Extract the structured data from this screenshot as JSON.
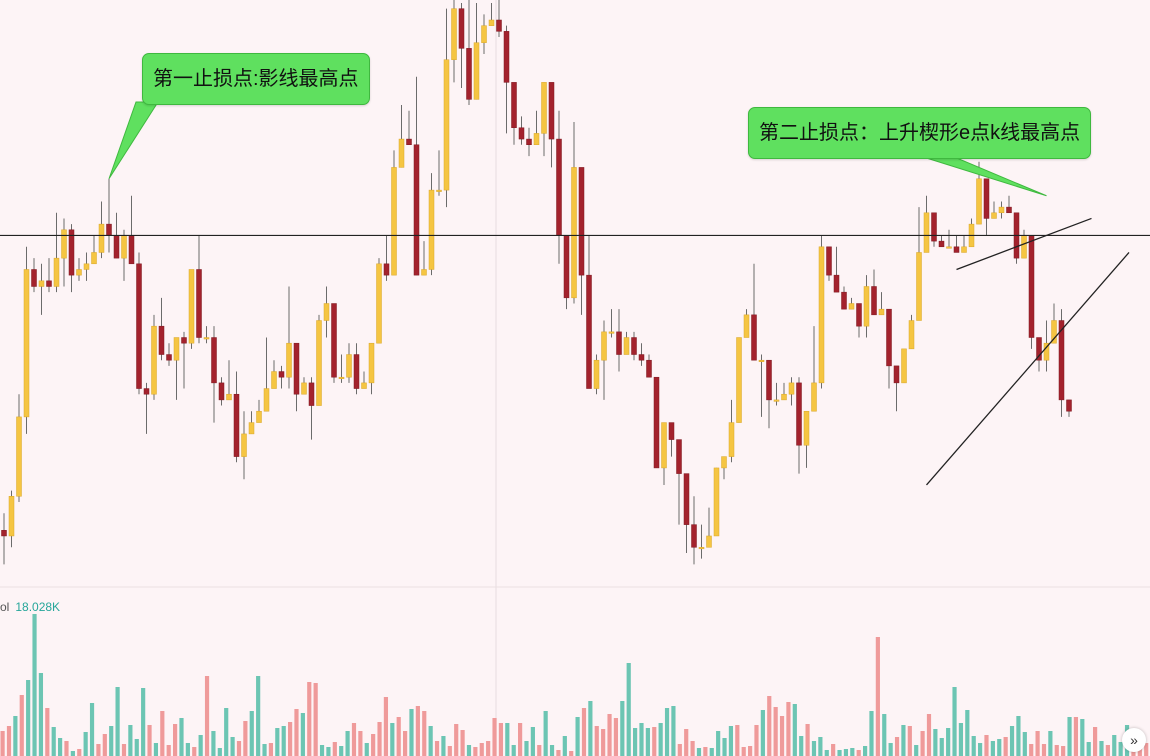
{
  "colors": {
    "background": "#fdf4f6",
    "up_candle": "#f5c542",
    "down_candle": "#a3222d",
    "wick": "#6b6b6b",
    "volume_green": "#6cc5b3",
    "volume_red": "#ef9a9a",
    "callout_bg": "#5fe05f",
    "line": "#222222"
  },
  "volume_label": {
    "name": "ol",
    "value": "18.028K"
  },
  "annotations": {
    "first_stop": "第一止损点:影线最高点",
    "second_stop": "第二止损点：上升楔形e点k线最高点"
  },
  "icons": {
    "scroll_right": "double-chevron-right-icon"
  },
  "chart_data": {
    "type": "candlestick",
    "title": "",
    "xlabel": "",
    "ylabel": "",
    "ylim": [
      0,
      100
    ],
    "grid": false,
    "horizontal_level": 62,
    "wedge": {
      "upper": [
        [
          127,
          56
        ],
        [
          145,
          65
        ]
      ],
      "lower": [
        [
          123,
          18
        ],
        [
          150,
          59
        ]
      ]
    },
    "candles": [
      [
        10,
        9,
        13,
        4
      ],
      [
        9,
        16,
        17,
        7
      ],
      [
        16,
        30,
        34,
        15
      ],
      [
        30,
        56,
        60,
        27
      ],
      [
        56,
        53,
        58,
        52
      ],
      [
        53,
        54,
        57,
        48
      ],
      [
        54,
        53,
        58,
        52
      ],
      [
        53,
        58,
        66,
        52
      ],
      [
        58,
        63,
        65,
        53
      ],
      [
        63,
        55,
        64,
        52
      ],
      [
        55,
        56,
        58,
        54
      ],
      [
        56,
        57,
        59,
        54
      ],
      [
        57,
        59,
        62,
        57
      ],
      [
        59,
        64,
        68,
        58
      ],
      [
        64,
        62,
        72,
        59
      ],
      [
        62,
        58,
        66,
        58
      ],
      [
        58,
        62,
        63,
        54
      ],
      [
        62,
        57,
        69,
        57
      ],
      [
        57,
        35,
        59,
        34
      ],
      [
        35,
        34,
        36,
        27
      ],
      [
        34,
        46,
        48,
        33
      ],
      [
        46,
        41,
        51,
        40
      ],
      [
        41,
        40,
        43,
        39
      ],
      [
        40,
        44,
        44,
        33
      ],
      [
        44,
        43,
        45,
        35
      ],
      [
        43,
        56,
        56,
        42
      ],
      [
        56,
        44,
        62,
        43
      ],
      [
        44,
        44,
        46,
        43
      ],
      [
        44,
        36,
        46,
        29
      ],
      [
        36,
        33,
        37,
        32
      ],
      [
        33,
        34,
        40,
        34
      ],
      [
        34,
        23,
        38,
        22
      ],
      [
        23,
        27,
        31,
        19
      ],
      [
        27,
        29,
        31,
        27
      ],
      [
        29,
        31,
        33,
        30
      ],
      [
        31,
        35,
        44,
        31
      ],
      [
        35,
        38,
        40,
        35
      ],
      [
        38,
        37,
        39,
        35
      ],
      [
        37,
        43,
        53,
        35
      ],
      [
        43,
        34,
        43,
        31
      ],
      [
        34,
        36,
        37,
        36
      ],
      [
        36,
        32,
        37,
        26
      ],
      [
        32,
        47,
        48,
        32
      ],
      [
        47,
        50,
        53,
        44
      ],
      [
        50,
        37,
        50,
        36
      ],
      [
        37,
        37,
        41,
        36
      ],
      [
        37,
        41,
        43,
        36
      ],
      [
        41,
        35,
        43,
        34
      ],
      [
        35,
        36,
        38,
        35
      ],
      [
        36,
        43,
        43,
        34
      ],
      [
        43,
        57,
        58,
        43
      ],
      [
        57,
        55,
        62,
        54
      ],
      [
        55,
        74,
        77,
        56
      ],
      [
        74,
        79,
        85,
        74
      ],
      [
        79,
        78,
        84,
        78
      ],
      [
        78,
        55,
        90,
        55
      ],
      [
        55,
        56,
        61,
        55
      ],
      [
        56,
        70,
        73,
        55
      ],
      [
        70,
        70,
        77,
        69
      ],
      [
        70,
        93,
        102,
        67
      ],
      [
        93,
        102,
        117,
        89
      ],
      [
        102,
        95,
        103,
        88
      ],
      [
        95,
        86,
        105,
        85
      ],
      [
        86,
        96,
        103,
        86
      ],
      [
        96,
        99,
        101,
        94
      ],
      [
        99,
        100,
        103,
        99
      ],
      [
        100,
        98,
        105,
        97
      ],
      [
        98,
        89,
        99,
        80
      ],
      [
        89,
        81,
        83,
        78
      ],
      [
        81,
        79,
        83,
        78
      ],
      [
        79,
        78,
        81,
        76
      ],
      [
        78,
        80,
        84,
        78
      ],
      [
        80,
        89,
        89,
        76
      ],
      [
        89,
        79,
        82,
        74
      ],
      [
        79,
        62,
        84,
        57
      ],
      [
        62,
        51,
        60,
        49
      ],
      [
        51,
        74,
        82,
        50
      ],
      [
        74,
        55,
        56,
        48
      ],
      [
        55,
        35,
        62,
        35
      ],
      [
        35,
        40,
        41,
        34
      ],
      [
        40,
        45,
        47,
        33
      ],
      [
        45,
        45,
        49,
        44
      ],
      [
        45,
        41,
        49,
        38
      ],
      [
        41,
        44,
        45,
        41
      ],
      [
        44,
        41,
        45,
        40
      ],
      [
        41,
        40,
        43,
        39
      ],
      [
        40,
        37,
        41,
        37
      ],
      [
        37,
        21,
        36,
        21
      ],
      [
        21,
        29,
        29,
        18
      ],
      [
        29,
        26,
        28,
        23
      ],
      [
        26,
        20,
        20,
        11
      ],
      [
        20,
        11,
        16,
        6
      ],
      [
        11,
        7,
        16,
        4
      ],
      [
        7,
        7,
        11,
        5
      ],
      [
        7,
        9,
        14,
        9
      ],
      [
        9,
        21,
        21,
        9
      ],
      [
        21,
        23,
        23,
        19
      ],
      [
        23,
        29,
        33,
        22
      ],
      [
        29,
        44,
        44,
        29
      ],
      [
        44,
        48,
        49,
        44
      ],
      [
        48,
        40,
        57,
        40
      ],
      [
        40,
        40,
        41,
        30
      ],
      [
        40,
        33,
        35,
        28
      ],
      [
        33,
        33,
        36,
        32
      ],
      [
        33,
        34,
        36,
        33
      ],
      [
        34,
        36,
        37,
        32
      ],
      [
        36,
        25,
        37,
        20
      ],
      [
        25,
        31,
        31,
        21
      ],
      [
        31,
        36,
        46,
        31
      ],
      [
        36,
        60,
        62,
        35
      ],
      [
        60,
        55,
        60,
        54
      ],
      [
        55,
        52,
        60,
        52
      ],
      [
        52,
        49,
        53,
        49
      ],
      [
        49,
        50,
        51,
        49
      ],
      [
        50,
        46,
        50,
        44
      ],
      [
        46,
        53,
        55,
        44
      ],
      [
        53,
        48,
        56,
        48
      ],
      [
        48,
        49,
        52,
        48
      ],
      [
        49,
        39,
        44,
        35
      ],
      [
        39,
        36,
        38,
        31
      ],
      [
        36,
        42,
        41,
        36
      ],
      [
        42,
        47,
        48,
        42
      ],
      [
        47,
        59,
        67,
        47
      ],
      [
        59,
        66,
        69,
        59
      ],
      [
        66,
        61,
        64,
        60
      ],
      [
        61,
        60,
        62,
        60
      ],
      [
        60,
        60,
        63,
        60
      ],
      [
        60,
        59,
        62,
        59
      ],
      [
        59,
        60,
        62,
        59
      ],
      [
        60,
        64,
        65,
        60
      ],
      [
        64,
        72,
        75,
        64
      ],
      [
        72,
        65,
        69,
        62
      ],
      [
        65,
        66,
        68,
        65
      ],
      [
        66,
        67,
        68,
        65
      ],
      [
        67,
        66,
        69,
        66
      ],
      [
        66,
        58,
        63,
        57
      ],
      [
        58,
        62,
        63,
        58
      ],
      [
        62,
        44,
        58,
        42
      ],
      [
        44,
        40,
        41,
        38
      ],
      [
        40,
        43,
        47,
        38
      ],
      [
        43,
        47,
        50,
        43
      ],
      [
        47,
        33,
        49,
        30
      ],
      [
        33,
        31,
        33,
        30
      ]
    ],
    "volume": [
      [
        25,
        "r"
      ],
      [
        30,
        "r"
      ],
      [
        40,
        "g"
      ],
      [
        61,
        "r"
      ],
      [
        76,
        "g"
      ],
      [
        142,
        "g"
      ],
      [
        83,
        "g"
      ],
      [
        48,
        "r"
      ],
      [
        29,
        "g"
      ],
      [
        18,
        "g"
      ],
      [
        15,
        "r"
      ],
      [
        5,
        "g"
      ],
      [
        7,
        "r"
      ],
      [
        24,
        "g"
      ],
      [
        53,
        "g"
      ],
      [
        12,
        "r"
      ],
      [
        22,
        "r"
      ],
      [
        30,
        "g"
      ],
      [
        69,
        "g"
      ],
      [
        12,
        "r"
      ],
      [
        31,
        "g"
      ],
      [
        17,
        "g"
      ],
      [
        68,
        "g"
      ],
      [
        31,
        "r"
      ],
      [
        13,
        "g"
      ],
      [
        45,
        "r"
      ],
      [
        11,
        "r"
      ],
      [
        32,
        "r"
      ],
      [
        38,
        "g"
      ],
      [
        13,
        "g"
      ],
      [
        9,
        "r"
      ],
      [
        21,
        "g"
      ],
      [
        80,
        "r"
      ],
      [
        25,
        "g"
      ],
      [
        8,
        "g"
      ],
      [
        48,
        "g"
      ],
      [
        19,
        "g"
      ],
      [
        15,
        "r"
      ],
      [
        35,
        "r"
      ],
      [
        45,
        "g"
      ],
      [
        80,
        "g"
      ],
      [
        12,
        "g"
      ],
      [
        13,
        "r"
      ],
      [
        28,
        "g"
      ],
      [
        30,
        "g"
      ],
      [
        34,
        "r"
      ],
      [
        47,
        "r"
      ],
      [
        43,
        "g"
      ],
      [
        74,
        "r"
      ],
      [
        73,
        "r"
      ],
      [
        11,
        "g"
      ],
      [
        9,
        "g"
      ],
      [
        14,
        "r"
      ],
      [
        10,
        "g"
      ],
      [
        25,
        "g"
      ],
      [
        33,
        "r"
      ],
      [
        25,
        "r"
      ],
      [
        13,
        "g"
      ],
      [
        22,
        "r"
      ],
      [
        34,
        "r"
      ],
      [
        59,
        "r"
      ],
      [
        33,
        "g"
      ],
      [
        39,
        "r"
      ],
      [
        25,
        "r"
      ],
      [
        47,
        "g"
      ],
      [
        50,
        "r"
      ],
      [
        45,
        "r"
      ],
      [
        30,
        "g"
      ],
      [
        15,
        "r"
      ],
      [
        20,
        "g"
      ],
      [
        10,
        "r"
      ],
      [
        32,
        "r"
      ],
      [
        26,
        "r"
      ],
      [
        11,
        "g"
      ],
      [
        9,
        "r"
      ],
      [
        13,
        "r"
      ],
      [
        15,
        "r"
      ],
      [
        38,
        "r"
      ],
      [
        33,
        "r"
      ],
      [
        33,
        "g"
      ],
      [
        11,
        "g"
      ],
      [
        33,
        "r"
      ],
      [
        15,
        "g"
      ],
      [
        29,
        "g"
      ],
      [
        11,
        "r"
      ],
      [
        45,
        "g"
      ],
      [
        11,
        "g"
      ],
      [
        6,
        "r"
      ],
      [
        20,
        "g"
      ],
      [
        5,
        "r"
      ],
      [
        39,
        "g"
      ],
      [
        48,
        "r"
      ],
      [
        55,
        "g"
      ],
      [
        30,
        "r"
      ],
      [
        27,
        "r"
      ],
      [
        42,
        "r"
      ],
      [
        38,
        "r"
      ],
      [
        55,
        "g"
      ],
      [
        93,
        "g"
      ],
      [
        28,
        "g"
      ],
      [
        33,
        "g"
      ],
      [
        28,
        "g"
      ],
      [
        29,
        "r"
      ],
      [
        33,
        "g"
      ],
      [
        48,
        "g"
      ],
      [
        50,
        "g"
      ],
      [
        12,
        "r"
      ],
      [
        27,
        "r"
      ],
      [
        15,
        "r"
      ],
      [
        8,
        "g"
      ],
      [
        9,
        "r"
      ],
      [
        8,
        "g"
      ],
      [
        25,
        "g"
      ],
      [
        18,
        "g"
      ],
      [
        30,
        "g"
      ],
      [
        31,
        "r"
      ],
      [
        9,
        "r"
      ],
      [
        10,
        "r"
      ],
      [
        31,
        "r"
      ],
      [
        46,
        "g"
      ],
      [
        60,
        "r"
      ],
      [
        49,
        "r"
      ],
      [
        40,
        "r"
      ],
      [
        54,
        "r"
      ],
      [
        52,
        "g"
      ],
      [
        20,
        "g"
      ],
      [
        32,
        "r"
      ],
      [
        15,
        "g"
      ],
      [
        19,
        "g"
      ],
      [
        6,
        "g"
      ],
      [
        12,
        "r"
      ],
      [
        6,
        "g"
      ],
      [
        7,
        "g"
      ],
      [
        8,
        "g"
      ],
      [
        6,
        "r"
      ],
      [
        10,
        "g"
      ],
      [
        45,
        "g"
      ],
      [
        119,
        "r"
      ],
      [
        42,
        "g"
      ],
      [
        13,
        "g"
      ],
      [
        19,
        "r"
      ],
      [
        31,
        "g"
      ],
      [
        30,
        "r"
      ],
      [
        11,
        "g"
      ],
      [
        25,
        "r"
      ],
      [
        42,
        "r"
      ],
      [
        27,
        "g"
      ],
      [
        18,
        "g"
      ],
      [
        28,
        "g"
      ],
      [
        69,
        "g"
      ],
      [
        33,
        "g"
      ],
      [
        46,
        "g"
      ],
      [
        20,
        "g"
      ],
      [
        13,
        "g"
      ],
      [
        21,
        "r"
      ],
      [
        15,
        "g"
      ],
      [
        17,
        "g"
      ],
      [
        19,
        "r"
      ],
      [
        30,
        "g"
      ],
      [
        40,
        "g"
      ],
      [
        24,
        "g"
      ],
      [
        12,
        "r"
      ],
      [
        25,
        "r"
      ],
      [
        12,
        "r"
      ],
      [
        25,
        "g"
      ],
      [
        11,
        "r"
      ],
      [
        10,
        "r"
      ],
      [
        39,
        "g"
      ],
      [
        39,
        "r"
      ],
      [
        37,
        "g"
      ],
      [
        14,
        "g"
      ],
      [
        29,
        "r"
      ],
      [
        15,
        "g"
      ],
      [
        11,
        "r"
      ],
      [
        21,
        "g"
      ],
      [
        14,
        "g"
      ],
      [
        31,
        "g"
      ],
      [
        14,
        "r"
      ],
      [
        16,
        "r"
      ],
      [
        13,
        "r"
      ]
    ]
  }
}
